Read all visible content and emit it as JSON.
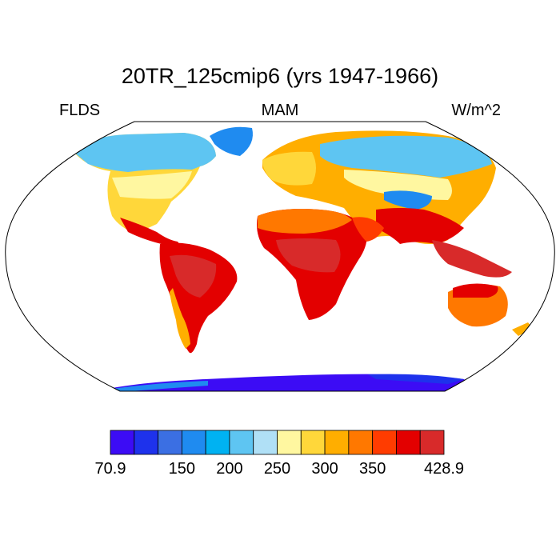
{
  "title": "20TR_125cmip6 (yrs 1947-1966)",
  "left_label": "FLDS",
  "center_label": "MAM",
  "right_label": "W/m^2",
  "colorbar": {
    "colors": [
      "#3c0cf5",
      "#1e32ec",
      "#3b6fe3",
      "#1f8bf0",
      "#00b2f2",
      "#5ec5f2",
      "#b0e0f6",
      "#fff7a0",
      "#ffd73a",
      "#ffae00",
      "#ff7800",
      "#ff3c00",
      "#e30000",
      "#d82a2a"
    ],
    "tick_labels": [
      "70.9",
      "",
      "150",
      "200",
      "250",
      "300",
      "350",
      "",
      "428.9"
    ],
    "tick_boundary_index": [
      0,
      0,
      3,
      5,
      7,
      9,
      11,
      0,
      14
    ]
  },
  "chart_data": {
    "type": "heatmap",
    "projection": "Robinson",
    "variable": "FLDS",
    "season": "MAM",
    "units": "W/m^2",
    "min": 70.9,
    "max": 428.9,
    "levels": [
      70.9,
      100,
      125,
      150,
      175,
      200,
      225,
      250,
      275,
      300,
      325,
      350,
      375,
      400,
      428.9
    ]
  }
}
